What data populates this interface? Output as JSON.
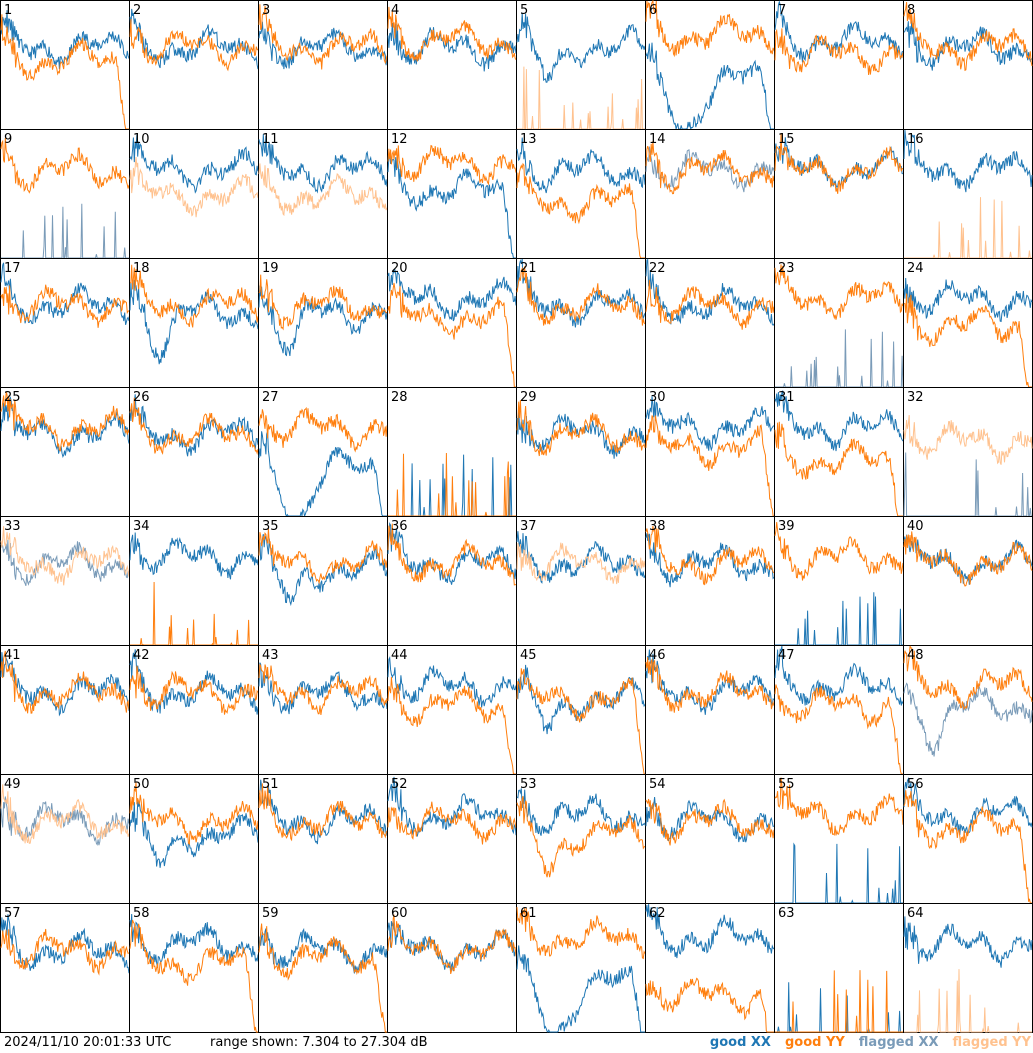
{
  "footer": {
    "timestamp": "2024/11/10 20:01:33 UTC",
    "range_text": "range shown: 7.304 to 27.304 dB"
  },
  "legend": [
    {
      "label": "good XX",
      "color": "#1f77b4"
    },
    {
      "label": "good YY",
      "color": "#ff7f0e"
    },
    {
      "label": "flagged XX",
      "color": "#7a9bb8"
    },
    {
      "label": "flagged YY",
      "color": "#ffc28f"
    }
  ],
  "chart_data": {
    "type": "line",
    "layout": "8x8 grid of small multiples, one per antenna",
    "y_range_db": [
      7.304,
      27.304
    ],
    "grid": false,
    "legend_placement": "bottom-right",
    "panels": [
      {
        "label": "1",
        "xx": "good",
        "yy": "good",
        "xx_shape": "normal",
        "yy_shape": "rolloff",
        "xx_level": 20,
        "yy_level": 18
      },
      {
        "label": "2",
        "xx": "good",
        "yy": "good",
        "xx_shape": "normal",
        "yy_shape": "normal",
        "xx_level": 20,
        "yy_level": 20
      },
      {
        "label": "3",
        "xx": "good",
        "yy": "good",
        "xx_shape": "normal",
        "yy_shape": "normal",
        "xx_level": 20,
        "yy_level": 20
      },
      {
        "label": "4",
        "xx": "good",
        "yy": "good",
        "xx_shape": "normal",
        "yy_shape": "normal",
        "xx_level": 20,
        "yy_level": 21
      },
      {
        "label": "5",
        "xx": "good",
        "yy": "flagged",
        "xx_shape": "dip",
        "yy_shape": "dead",
        "xx_level": 20,
        "yy_level": 7.3
      },
      {
        "label": "6",
        "xx": "good",
        "yy": "good",
        "xx_shape": "deep",
        "yy_shape": "normal",
        "xx_level": 15,
        "yy_level": 22
      },
      {
        "label": "7",
        "xx": "good",
        "yy": "good",
        "xx_shape": "normal",
        "yy_shape": "normal",
        "xx_level": 21,
        "yy_level": 19
      },
      {
        "label": "8",
        "xx": "good",
        "yy": "good",
        "xx_shape": "normal",
        "yy_shape": "normal",
        "xx_level": 20,
        "yy_level": 20
      },
      {
        "label": "9",
        "xx": "flagged",
        "yy": "good",
        "xx_shape": "dead",
        "yy_shape": "normal",
        "xx_level": 8,
        "yy_level": 21
      },
      {
        "label": "10",
        "xx": "good",
        "yy": "flagged",
        "xx_shape": "normal",
        "yy_shape": "normal",
        "xx_level": 21,
        "yy_level": 17
      },
      {
        "label": "11",
        "xx": "good",
        "yy": "flagged",
        "xx_shape": "normal",
        "yy_shape": "normal",
        "xx_level": 21,
        "yy_level": 17
      },
      {
        "label": "12",
        "xx": "good",
        "yy": "good",
        "xx_shape": "rolloff",
        "yy_shape": "normal",
        "xx_level": 18,
        "yy_level": 22
      },
      {
        "label": "13",
        "xx": "good",
        "yy": "good",
        "xx_shape": "normal",
        "yy_shape": "rolloff",
        "xx_level": 21,
        "yy_level": 16
      },
      {
        "label": "14",
        "xx": "flagged",
        "yy": "good",
        "xx_shape": "normal",
        "yy_shape": "normal",
        "xx_level": 21,
        "yy_level": 21
      },
      {
        "label": "15",
        "xx": "good",
        "yy": "good",
        "xx_shape": "normal",
        "yy_shape": "normal",
        "xx_level": 21,
        "yy_level": 21
      },
      {
        "label": "16",
        "xx": "good",
        "yy": "flagged",
        "xx_shape": "normal",
        "yy_shape": "dead",
        "xx_level": 21,
        "yy_level": 7.3
      },
      {
        "label": "17",
        "xx": "good",
        "yy": "good",
        "xx_shape": "normal",
        "yy_shape": "normal",
        "xx_level": 20,
        "yy_level": 20
      },
      {
        "label": "18",
        "xx": "good",
        "yy": "good",
        "xx_shape": "dip",
        "yy_shape": "normal",
        "xx_level": 19,
        "yy_level": 20
      },
      {
        "label": "19",
        "xx": "good",
        "yy": "good",
        "xx_shape": "dip",
        "yy_shape": "normal",
        "xx_level": 19,
        "yy_level": 20
      },
      {
        "label": "20",
        "xx": "good",
        "yy": "good",
        "xx_shape": "normal",
        "yy_shape": "rolloff",
        "xx_level": 21,
        "yy_level": 18
      },
      {
        "label": "21",
        "xx": "good",
        "yy": "good",
        "xx_shape": "normal",
        "yy_shape": "normal",
        "xx_level": 20,
        "yy_level": 20
      },
      {
        "label": "22",
        "xx": "good",
        "yy": "good",
        "xx_shape": "normal",
        "yy_shape": "normal",
        "xx_level": 20,
        "yy_level": 20
      },
      {
        "label": "23",
        "xx": "flagged",
        "yy": "good",
        "xx_shape": "dead",
        "yy_shape": "normal",
        "xx_level": 11,
        "yy_level": 21
      },
      {
        "label": "24",
        "xx": "good",
        "yy": "good",
        "xx_shape": "normal",
        "yy_shape": "rolloff",
        "xx_level": 21,
        "yy_level": 17
      },
      {
        "label": "25",
        "xx": "good",
        "yy": "good",
        "xx_shape": "normal",
        "yy_shape": "normal",
        "xx_level": 20,
        "yy_level": 21
      },
      {
        "label": "26",
        "xx": "good",
        "yy": "good",
        "xx_shape": "normal",
        "yy_shape": "normal",
        "xx_level": 20,
        "yy_level": 20
      },
      {
        "label": "27",
        "xx": "good",
        "yy": "good",
        "xx_shape": "deep",
        "yy_shape": "normal",
        "xx_level": 15,
        "yy_level": 21
      },
      {
        "label": "28",
        "xx": "good",
        "yy": "good",
        "xx_shape": "dead",
        "yy_shape": "dead",
        "xx_level": 7.3,
        "yy_level": 7.3
      },
      {
        "label": "29",
        "xx": "good",
        "yy": "good",
        "xx_shape": "normal",
        "yy_shape": "normal",
        "xx_level": 20,
        "yy_level": 20
      },
      {
        "label": "30",
        "xx": "good",
        "yy": "good",
        "xx_shape": "normal",
        "yy_shape": "rolloff",
        "xx_level": 21,
        "yy_level": 18
      },
      {
        "label": "31",
        "xx": "good",
        "yy": "good",
        "xx_shape": "normal",
        "yy_shape": "rolloff",
        "xx_level": 21,
        "yy_level": 16
      },
      {
        "label": "32",
        "xx": "flagged",
        "yy": "flagged",
        "xx_shape": "dead",
        "yy_shape": "normal",
        "xx_level": 7.3,
        "yy_level": 19
      },
      {
        "label": "33",
        "xx": "flagged",
        "yy": "flagged",
        "xx_shape": "normal",
        "yy_shape": "normal",
        "xx_level": 20,
        "yy_level": 20
      },
      {
        "label": "34",
        "xx": "good",
        "yy": "good",
        "xx_shape": "normal",
        "yy_shape": "dead",
        "xx_level": 21,
        "yy_level": 7.3
      },
      {
        "label": "35",
        "xx": "good",
        "yy": "good",
        "xx_shape": "dip",
        "yy_shape": "normal",
        "xx_level": 19,
        "yy_level": 20
      },
      {
        "label": "36",
        "xx": "good",
        "yy": "good",
        "xx_shape": "normal",
        "yy_shape": "normal",
        "xx_level": 20,
        "yy_level": 20
      },
      {
        "label": "37",
        "xx": "good",
        "yy": "flagged",
        "xx_shape": "normal",
        "yy_shape": "normal",
        "xx_level": 20,
        "yy_level": 20
      },
      {
        "label": "38",
        "xx": "good",
        "yy": "good",
        "xx_shape": "normal",
        "yy_shape": "normal",
        "xx_level": 20,
        "yy_level": 20
      },
      {
        "label": "39",
        "xx": "good",
        "yy": "good",
        "xx_shape": "dead",
        "yy_shape": "normal",
        "xx_level": 7.3,
        "yy_level": 21
      },
      {
        "label": "40",
        "xx": "good",
        "yy": "good",
        "xx_shape": "normal",
        "yy_shape": "normal",
        "xx_level": 20,
        "yy_level": 20
      },
      {
        "label": "41",
        "xx": "good",
        "yy": "good",
        "xx_shape": "normal",
        "yy_shape": "normal",
        "xx_level": 20,
        "yy_level": 20
      },
      {
        "label": "42",
        "xx": "good",
        "yy": "good",
        "xx_shape": "normal",
        "yy_shape": "normal",
        "xx_level": 20,
        "yy_level": 20
      },
      {
        "label": "43",
        "xx": "good",
        "yy": "good",
        "xx_shape": "normal",
        "yy_shape": "normal",
        "xx_level": 20,
        "yy_level": 20
      },
      {
        "label": "44",
        "xx": "good",
        "yy": "good",
        "xx_shape": "normal",
        "yy_shape": "rolloff",
        "xx_level": 21,
        "yy_level": 18
      },
      {
        "label": "45",
        "xx": "good",
        "yy": "good",
        "xx_shape": "dip",
        "yy_shape": "rolloff",
        "xx_level": 19,
        "yy_level": 19
      },
      {
        "label": "46",
        "xx": "good",
        "yy": "good",
        "xx_shape": "normal",
        "yy_shape": "normal",
        "xx_level": 20,
        "yy_level": 20
      },
      {
        "label": "47",
        "xx": "good",
        "yy": "good",
        "xx_shape": "normal",
        "yy_shape": "rolloff",
        "xx_level": 21,
        "yy_level": 18
      },
      {
        "label": "48",
        "xx": "flagged",
        "yy": "good",
        "xx_shape": "dip",
        "yy_shape": "normal",
        "xx_level": 18,
        "yy_level": 21
      },
      {
        "label": "49",
        "xx": "flagged",
        "yy": "flagged",
        "xx_shape": "normal",
        "yy_shape": "normal",
        "xx_level": 20,
        "yy_level": 20
      },
      {
        "label": "50",
        "xx": "good",
        "yy": "good",
        "xx_shape": "dip",
        "yy_shape": "normal",
        "xx_level": 18,
        "yy_level": 20
      },
      {
        "label": "51",
        "xx": "good",
        "yy": "good",
        "xx_shape": "normal",
        "yy_shape": "normal",
        "xx_level": 20,
        "yy_level": 20
      },
      {
        "label": "52",
        "xx": "good",
        "yy": "good",
        "xx_shape": "normal",
        "yy_shape": "normal",
        "xx_level": 21,
        "yy_level": 20
      },
      {
        "label": "53",
        "xx": "good",
        "yy": "good",
        "xx_shape": "normal",
        "yy_shape": "dip",
        "xx_level": 21,
        "yy_level": 18
      },
      {
        "label": "54",
        "xx": "good",
        "yy": "good",
        "xx_shape": "normal",
        "yy_shape": "normal",
        "xx_level": 20,
        "yy_level": 20
      },
      {
        "label": "55",
        "xx": "good",
        "yy": "good",
        "xx_shape": "dead",
        "yy_shape": "normal",
        "xx_level": 8,
        "yy_level": 21
      },
      {
        "label": "56",
        "xx": "good",
        "yy": "good",
        "xx_shape": "normal",
        "yy_shape": "rolloff",
        "xx_level": 21,
        "yy_level": 19
      },
      {
        "label": "57",
        "xx": "good",
        "yy": "good",
        "xx_shape": "normal",
        "yy_shape": "normal",
        "xx_level": 20,
        "yy_level": 20
      },
      {
        "label": "58",
        "xx": "good",
        "yy": "good",
        "xx_shape": "normal",
        "yy_shape": "rolloff",
        "xx_level": 21,
        "yy_level": 18
      },
      {
        "label": "59",
        "xx": "good",
        "yy": "good",
        "xx_shape": "normal",
        "yy_shape": "rolloff",
        "xx_level": 20,
        "yy_level": 19
      },
      {
        "label": "60",
        "xx": "good",
        "yy": "good",
        "xx_shape": "normal",
        "yy_shape": "normal",
        "xx_level": 20,
        "yy_level": 20
      },
      {
        "label": "61",
        "xx": "good",
        "yy": "good",
        "xx_shape": "deep",
        "yy_shape": "normal",
        "xx_level": 15,
        "yy_level": 22
      },
      {
        "label": "62",
        "xx": "good",
        "yy": "good",
        "xx_shape": "normal",
        "yy_shape": "rolloff",
        "xx_level": 22,
        "yy_level": 13
      },
      {
        "label": "63",
        "xx": "good",
        "yy": "good",
        "xx_shape": "dead",
        "yy_shape": "dead",
        "xx_level": 7.3,
        "yy_level": 7.3
      },
      {
        "label": "64",
        "xx": "good",
        "yy": "flagged",
        "xx_shape": "normal",
        "yy_shape": "dead",
        "xx_level": 21,
        "yy_level": 7.3
      }
    ]
  }
}
